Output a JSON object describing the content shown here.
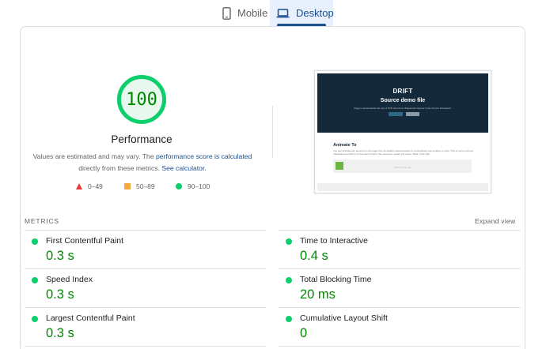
{
  "tabs": [
    {
      "label": "Mobile",
      "icon": "mobile-phone-icon",
      "selected": false
    },
    {
      "label": "Desktop",
      "icon": "laptop-icon",
      "selected": true
    }
  ],
  "performance": {
    "score": "100",
    "score_fraction": 1.0,
    "title": "Performance",
    "description_prefix": "Values are estimated and may vary. The ",
    "description_link": "performance score is calculated",
    "description_middle": " directly from these metrics. ",
    "calculator_link": "See calculator.",
    "gauge_color": "#0cce6b",
    "score_color": "#008800"
  },
  "legend": [
    {
      "range": "0–49",
      "shape": "triangle",
      "color": "#e53935"
    },
    {
      "range": "50–89",
      "shape": "square",
      "color": "#f4a93d"
    },
    {
      "range": "90–100",
      "shape": "circle",
      "color": "#0cce6b"
    }
  ],
  "screenshot": {
    "logo": "DRIFT",
    "heading": "Source demo file",
    "tagline": "Page to demonstrate the use of Drift client from Wayward's Opener in the Source framework.",
    "section_title": "Animate To",
    "section_text": "You can animate any element on the page from its default natural location to a completely new location or style. This is more common transitions and will run in this demo below. Set some box model and movie. Slide in the right.",
    "box_text": "Click to animate"
  },
  "metrics": {
    "label": "METRICS",
    "expand_label": "Expand view",
    "items": [
      {
        "name": "First Contentful Paint",
        "value": "0.3 s"
      },
      {
        "name": "Time to Interactive",
        "value": "0.4 s"
      },
      {
        "name": "Speed Index",
        "value": "0.3 s"
      },
      {
        "name": "Total Blocking Time",
        "value": "20 ms"
      },
      {
        "name": "Largest Contentful Paint",
        "value": "0.3 s"
      },
      {
        "name": "Cumulative Layout Shift",
        "value": "0"
      }
    ]
  }
}
